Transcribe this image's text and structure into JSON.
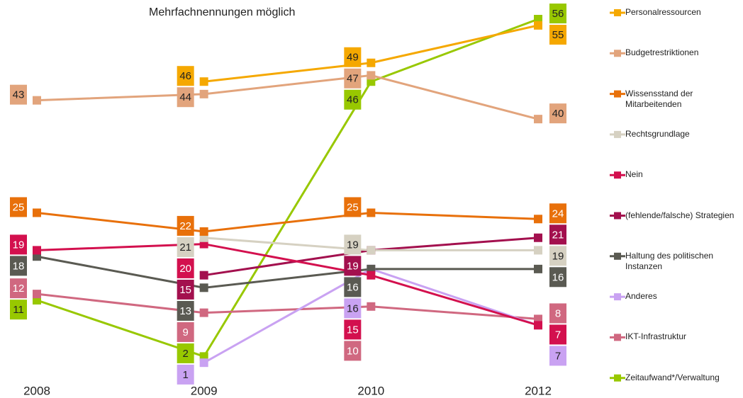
{
  "chart_data": {
    "type": "line",
    "subtitle": "Mehrfachnennungen möglich",
    "categories": [
      "2008",
      "2009",
      "2010",
      "2012"
    ],
    "series": [
      {
        "name": "Personalressourcen",
        "color": "#f5a800",
        "values": [
          null,
          46,
          49,
          55
        ]
      },
      {
        "name": "Budgetrestriktionen",
        "color": "#e2a47c",
        "values": [
          43,
          44,
          47,
          40
        ]
      },
      {
        "name": "Wissensstand der Mitarbeitenden",
        "color": "#e8700a",
        "values": [
          25,
          22,
          25,
          24
        ]
      },
      {
        "name": "Rechtsgrundlage",
        "color": "#d6d1c2",
        "values": [
          null,
          21,
          19,
          19
        ]
      },
      {
        "name": "Nein",
        "color": "#d3104e",
        "values": [
          19,
          20,
          15,
          7
        ]
      },
      {
        "name": "(fehlende/falsche) Strategien",
        "color": "#a3104e",
        "values": [
          null,
          15,
          19,
          21
        ]
      },
      {
        "name": "Haltung des politischen Instanzen",
        "color": "#5a5a52",
        "values": [
          18,
          13,
          16,
          16
        ]
      },
      {
        "name": "Anderes",
        "color": "#c9a2f2",
        "values": [
          null,
          1,
          16,
          7
        ]
      },
      {
        "name": "IKT-Infrastruktur",
        "color": "#d06880",
        "values": [
          12,
          9,
          10,
          8
        ]
      },
      {
        "name": "Zeitaufwand*/Verwaltung",
        "color": "#98c800",
        "values": [
          11,
          2,
          46,
          56
        ]
      }
    ]
  }
}
